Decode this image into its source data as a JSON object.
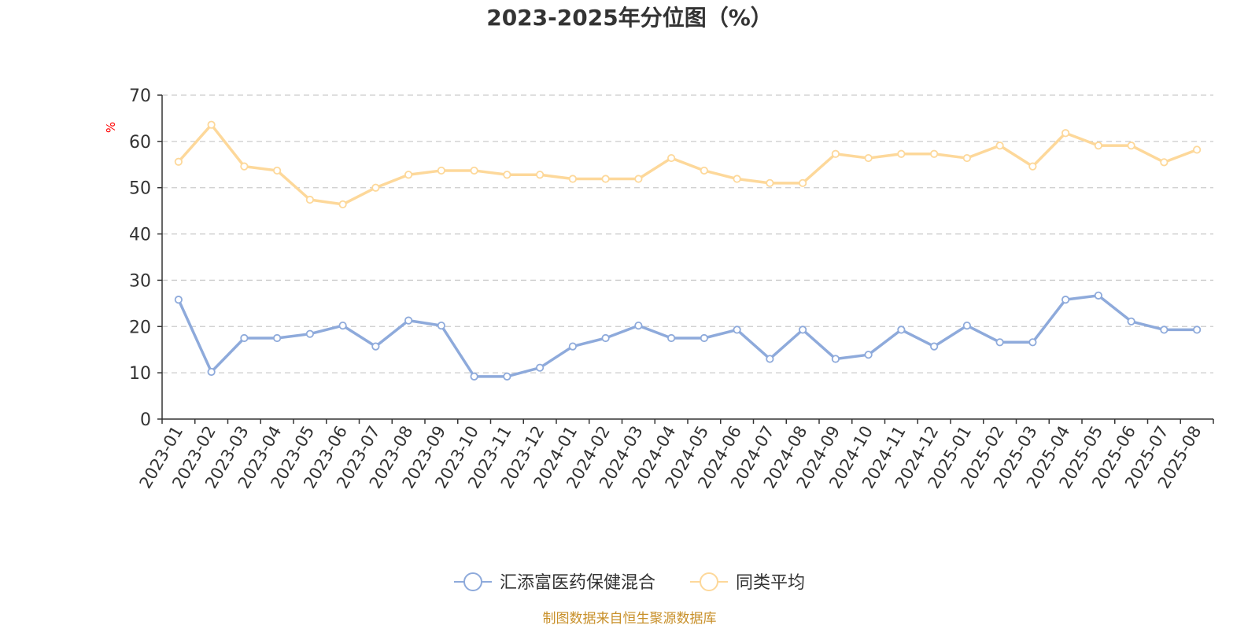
{
  "chart_data": {
    "type": "line",
    "title": "2023-2025年分位图（%）",
    "ylabel": "%",
    "xlabel": "",
    "ylim": [
      0,
      70
    ],
    "yticks": [
      0,
      10,
      20,
      30,
      40,
      50,
      60,
      70
    ],
    "grid": true,
    "legend_position": "bottom",
    "categories": [
      "2023-01",
      "2023-02",
      "2023-03",
      "2023-04",
      "2023-05",
      "2023-06",
      "2023-07",
      "2023-08",
      "2023-09",
      "2023-10",
      "2023-11",
      "2023-12",
      "2024-01",
      "2024-02",
      "2024-03",
      "2024-04",
      "2024-05",
      "2024-06",
      "2024-07",
      "2024-08",
      "2024-09",
      "2024-10",
      "2024-11",
      "2024-12",
      "2025-01",
      "2025-02",
      "2025-03",
      "2025-04",
      "2025-05",
      "2025-06",
      "2025-07",
      "2025-08"
    ],
    "series": [
      {
        "name": "汇添富医药保健混合",
        "color": "#8eaadb",
        "values": [
          25.8,
          10.2,
          17.5,
          17.5,
          18.4,
          20.2,
          15.7,
          21.3,
          20.2,
          9.2,
          9.2,
          11.1,
          15.7,
          17.5,
          20.2,
          17.5,
          17.5,
          19.3,
          13.0,
          19.3,
          13.0,
          13.9,
          19.3,
          15.7,
          20.2,
          16.6,
          16.6,
          25.8,
          26.7,
          21.1,
          19.3,
          19.3
        ]
      },
      {
        "name": "同类平均",
        "color": "#fdd89a",
        "values": [
          55.6,
          63.6,
          54.6,
          53.7,
          47.4,
          46.4,
          50.0,
          52.8,
          53.7,
          53.7,
          52.8,
          52.8,
          51.9,
          51.9,
          51.9,
          56.4,
          53.7,
          51.9,
          51.0,
          51.0,
          57.3,
          56.4,
          57.3,
          57.3,
          56.4,
          59.1,
          54.6,
          61.8,
          59.1,
          59.1,
          55.5,
          58.2
        ]
      }
    ],
    "source": "制图数据来自恒生聚源数据库"
  },
  "colors": {
    "grid": "#cccccc",
    "axis": "#333333",
    "source_text": "#c8902a"
  }
}
